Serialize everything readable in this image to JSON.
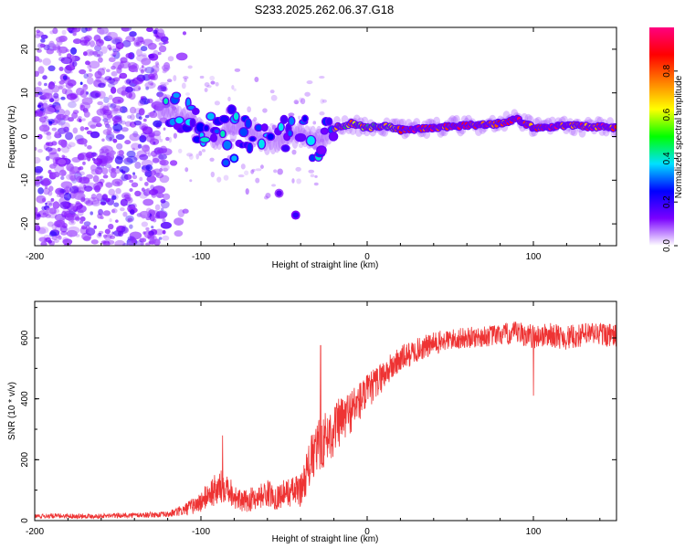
{
  "title": "S233.2025.262.06.37.G18",
  "chart_data": [
    {
      "type": "heatmap",
      "name": "spectrogram",
      "xlabel": "Height of straight line (km)",
      "ylabel": "Frequency (Hz)",
      "xlim": [
        -200,
        150
      ],
      "ylim": [
        -25,
        25
      ],
      "xticks": [
        -200,
        -100,
        0,
        100
      ],
      "xtick_labels": [
        "-200",
        "-100",
        "0",
        "100"
      ],
      "yticks": [
        20,
        10,
        0,
        -10,
        -20
      ],
      "ytick_labels": [
        "20",
        "10",
        "0",
        "-10",
        "-20"
      ],
      "colorbar": {
        "label": "Normalized spectral amplitude",
        "range": [
          0,
          1
        ],
        "ticks": [
          0.0,
          0.2,
          0.4,
          0.6,
          0.8
        ],
        "tick_labels": [
          "0.0",
          "0.2",
          "0.4",
          "0.6",
          "0.8"
        ],
        "colormap": [
          "#ffffff",
          "#7a00ff",
          "#0000ff",
          "#00e0ff",
          "#00ff00",
          "#ffff00",
          "#ff8000",
          "#ff0000",
          "#ff0080"
        ]
      },
      "ridge": [
        {
          "x": -120,
          "f": 6.0
        },
        {
          "x": -110,
          "f": 4.0
        },
        {
          "x": -100,
          "f": 1.5
        },
        {
          "x": -90,
          "f": 0.0
        },
        {
          "x": -80,
          "f": 2.0
        },
        {
          "x": -70,
          "f": 1.0
        },
        {
          "x": -60,
          "f": -1.0
        },
        {
          "x": -50,
          "f": 0.0
        },
        {
          "x": -40,
          "f": 1.0
        },
        {
          "x": -30,
          "f": -1.0
        },
        {
          "x": -20,
          "f": 2.0
        },
        {
          "x": -10,
          "f": 3.0
        },
        {
          "x": 0,
          "f": 2.0
        },
        {
          "x": 10,
          "f": 2.5
        },
        {
          "x": 20,
          "f": 1.5
        },
        {
          "x": 40,
          "f": 2.0
        },
        {
          "x": 60,
          "f": 2.5
        },
        {
          "x": 80,
          "f": 3.0
        },
        {
          "x": 90,
          "f": 4.0
        },
        {
          "x": 100,
          "f": 2.0
        },
        {
          "x": 120,
          "f": 2.5
        },
        {
          "x": 150,
          "f": 2.0
        }
      ],
      "isolated_blobs": [
        {
          "x": -43,
          "f": -18,
          "amp": 0.2
        },
        {
          "x": -53,
          "f": -13,
          "amp": 0.15
        },
        {
          "x": -80,
          "f": -5,
          "amp": 0.35
        },
        {
          "x": -85,
          "f": -6,
          "amp": 0.3
        }
      ]
    },
    {
      "type": "line",
      "name": "snr",
      "xlabel": "Height of straight line (km)",
      "ylabel": "SNR (10 * v/v)",
      "xlim": [
        -200,
        150
      ],
      "ylim": [
        0,
        720
      ],
      "xticks": [
        -200,
        -100,
        0,
        100
      ],
      "xtick_labels": [
        "-200",
        "-100",
        "0",
        "100"
      ],
      "yticks": [
        0,
        200,
        400,
        600
      ],
      "ytick_labels": [
        "0",
        "200",
        "400",
        "600"
      ],
      "color": "#ee3333",
      "series": [
        {
          "name": "SNR",
          "x": [
            -200,
            -180,
            -160,
            -140,
            -120,
            -110,
            -100,
            -95,
            -90,
            -85,
            -80,
            -75,
            -70,
            -65,
            -60,
            -55,
            -50,
            -45,
            -40,
            -35,
            -30,
            -25,
            -20,
            -15,
            -10,
            -5,
            0,
            10,
            20,
            30,
            40,
            50,
            60,
            70,
            80,
            90,
            100,
            110,
            120,
            130,
            140,
            150
          ],
          "y": [
            15,
            15,
            15,
            18,
            20,
            35,
            60,
            90,
            100,
            120,
            80,
            60,
            70,
            80,
            90,
            75,
            90,
            95,
            100,
            180,
            240,
            270,
            300,
            330,
            360,
            390,
            420,
            480,
            530,
            560,
            580,
            595,
            600,
            605,
            610,
            615,
            605,
            610,
            600,
            610,
            615,
            605
          ],
          "noise": [
            8,
            8,
            8,
            8,
            10,
            20,
            35,
            45,
            60,
            55,
            40,
            35,
            40,
            40,
            45,
            40,
            45,
            50,
            55,
            80,
            90,
            90,
            90,
            80,
            75,
            70,
            60,
            50,
            45,
            40,
            40,
            35,
            35,
            35,
            35,
            40,
            40,
            40,
            40,
            40,
            40,
            40
          ]
        }
      ],
      "annotations": [
        {
          "x": -87,
          "y": 280,
          "note": "spike"
        },
        {
          "x": -28,
          "y": 575,
          "note": "spike"
        },
        {
          "x": 100,
          "y": 410,
          "note": "dip"
        }
      ]
    }
  ]
}
